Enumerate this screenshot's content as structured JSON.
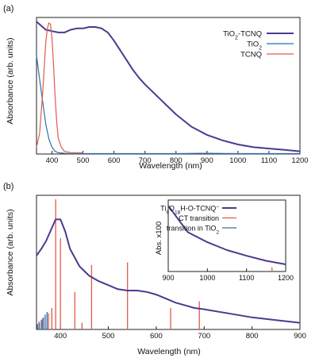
{
  "chart_data": [
    {
      "panel_label": "(a)",
      "type": "line",
      "xlabel": "Wavelength (nm)",
      "ylabel": "Absorbance (arb. units)",
      "xlim": [
        350,
        1200
      ],
      "ylim": [
        0,
        1.0
      ],
      "xticks": [
        400,
        500,
        600,
        700,
        800,
        900,
        1000,
        1100,
        1200
      ],
      "grid": false,
      "legend_position": "top-right",
      "series": [
        {
          "name": "TiO2-TCNQ",
          "legend_main": "TiO",
          "legend_sub": "2",
          "legend_tail": "-TCNQ",
          "color": "#4b3a8f",
          "x": [
            350,
            360,
            380,
            400,
            420,
            440,
            460,
            480,
            500,
            520,
            540,
            560,
            580,
            600,
            620,
            640,
            660,
            680,
            700,
            750,
            800,
            850,
            900,
            950,
            1000,
            1050,
            1100,
            1150,
            1200
          ],
          "y": [
            0.97,
            0.95,
            0.91,
            0.9,
            0.89,
            0.89,
            0.91,
            0.92,
            0.92,
            0.93,
            0.93,
            0.92,
            0.89,
            0.83,
            0.76,
            0.69,
            0.62,
            0.56,
            0.51,
            0.4,
            0.29,
            0.2,
            0.14,
            0.1,
            0.07,
            0.05,
            0.04,
            0.03,
            0.02
          ]
        },
        {
          "name": "TiO2",
          "legend_main": "TiO",
          "legend_sub": "2",
          "legend_tail": "",
          "color": "#2f6fa8",
          "x": [
            350,
            360,
            370,
            380,
            390,
            400,
            410,
            420,
            440,
            460,
            500,
            600,
            700,
            800,
            900,
            1000,
            1100,
            1200
          ],
          "y": [
            0.72,
            0.55,
            0.38,
            0.22,
            0.11,
            0.05,
            0.02,
            0.01,
            0.005,
            0.003,
            0.003,
            0.003,
            0.003,
            0.003,
            0.005,
            0.003,
            0.003,
            0.003
          ]
        },
        {
          "name": "TCNQ",
          "legend_main": "TCNQ",
          "legend_sub": "",
          "legend_tail": "",
          "color": "#e05a4a",
          "x": [
            350,
            360,
            370,
            380,
            385,
            390,
            395,
            400,
            405,
            410,
            415,
            420,
            430,
            440,
            460,
            500
          ],
          "y": [
            0.05,
            0.15,
            0.45,
            0.82,
            0.92,
            0.96,
            0.95,
            0.85,
            0.65,
            0.42,
            0.24,
            0.12,
            0.05,
            0.02,
            0.01,
            0.01
          ]
        }
      ]
    },
    {
      "panel_label": "(b)",
      "type": "line",
      "xlabel": "Wavelength (nm)",
      "ylabel": "Absorbance (arb. units)",
      "xlim": [
        350,
        900
      ],
      "ylim": [
        0,
        1.0
      ],
      "xticks": [
        400,
        500,
        600,
        700,
        800,
        900
      ],
      "grid": false,
      "series": [
        {
          "name": "Ti9O18H-O-TCNQ−",
          "color": "#4b3a8f",
          "x": [
            350,
            360,
            370,
            380,
            390,
            400,
            410,
            420,
            440,
            460,
            480,
            500,
            520,
            540,
            560,
            580,
            600,
            620,
            640,
            660,
            680,
            700,
            750,
            800,
            850,
            900
          ],
          "y": [
            0.55,
            0.6,
            0.66,
            0.74,
            0.82,
            0.82,
            0.73,
            0.6,
            0.47,
            0.4,
            0.36,
            0.33,
            0.3,
            0.29,
            0.29,
            0.28,
            0.26,
            0.23,
            0.2,
            0.18,
            0.16,
            0.15,
            0.12,
            0.09,
            0.07,
            0.05
          ]
        }
      ],
      "sticks": {
        "ct": {
          "name": "CT transition",
          "color": "#e05a4a",
          "x": [
            390,
            400,
            430,
            445,
            465,
            540,
            630,
            690
          ],
          "y": [
            0.97,
            0.68,
            0.28,
            0.05,
            0.48,
            0.5,
            0.16,
            0.21
          ]
        },
        "tio2": {
          "name": "transition in TiO2",
          "color": "#2f6fa8",
          "x": [
            352,
            356,
            360,
            364,
            368,
            372
          ],
          "y": [
            0.04,
            0.05,
            0.07,
            0.09,
            0.11,
            0.13
          ]
        },
        "small_red": {
          "color": "#e05a4a",
          "x": [
            355,
            362,
            368,
            375,
            382
          ],
          "y": [
            0.06,
            0.08,
            0.09,
            0.12,
            0.16
          ]
        }
      },
      "inset": {
        "ylabel": "Abs. x100",
        "xlim": [
          900,
          1200
        ],
        "ylim": [
          0,
          1.0
        ],
        "xticks": [
          900,
          1000,
          1100,
          1200
        ],
        "line": {
          "color": "#4b3a8f",
          "x": [
            900,
            950,
            1000,
            1050,
            1100,
            1150,
            1200
          ],
          "y": [
            0.92,
            0.55,
            0.41,
            0.3,
            0.22,
            0.15,
            0.1
          ]
        },
        "stick": {
          "color": "#e05a4a",
          "x": [
            1165
          ],
          "y": [
            0.06
          ]
        },
        "legend": [
          {
            "main": "Ti",
            "sub1": "9",
            "mid": "O",
            "sub2": "18",
            "tail": "H-O-TCNQ",
            "sup": "−",
            "color": "#4b3a8f"
          },
          {
            "main": "CT transition",
            "color": "#e05a4a"
          },
          {
            "main": "transition in TiO",
            "sub1": "2",
            "color": "#2f6fa8"
          }
        ]
      }
    }
  ]
}
